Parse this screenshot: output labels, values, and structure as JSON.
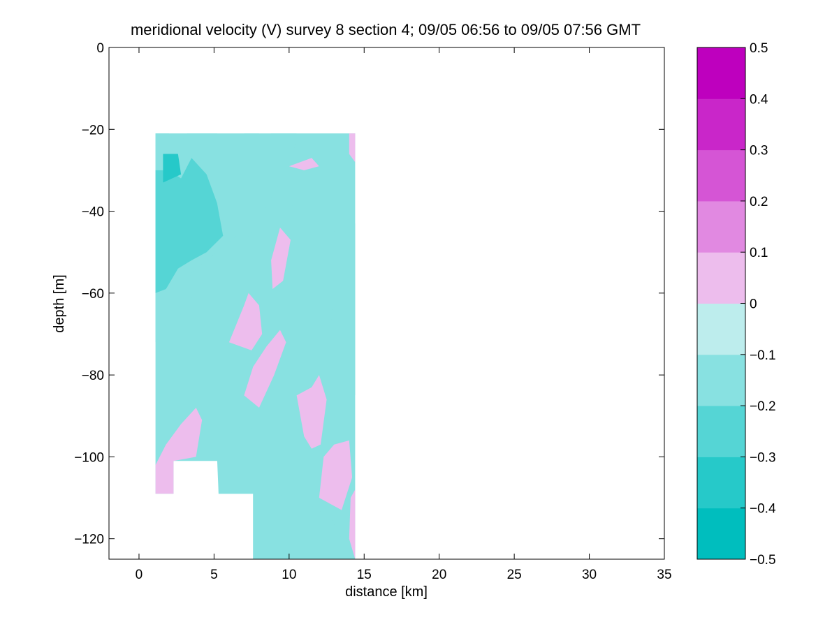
{
  "chart_data": {
    "type": "heatmap",
    "title": "meridional velocity (V) survey 8 section 4; 09/05 06:56 to 09/05 07:56 GMT",
    "xlabel": "distance [km]",
    "ylabel": "depth [m]",
    "xlim": [
      -2,
      35
    ],
    "ylim": [
      -125,
      0
    ],
    "x_ticks": [
      0,
      5,
      10,
      15,
      20,
      25,
      30,
      35
    ],
    "x_tick_labels": [
      "0",
      "5",
      "10",
      "15",
      "20",
      "25",
      "30",
      "35"
    ],
    "y_ticks": [
      0,
      -20,
      -40,
      -60,
      -80,
      -100,
      -120
    ],
    "y_tick_labels": [
      "0",
      "−20",
      "−40",
      "−60",
      "−80",
      "−100",
      "−120"
    ],
    "data_extent": {
      "x": [
        1.1,
        14.4
      ],
      "depth": [
        -21,
        -125
      ]
    },
    "colorbar": {
      "levels": [
        -0.5,
        -0.4,
        -0.3,
        -0.2,
        -0.1,
        0,
        0.1,
        0.2,
        0.3,
        0.4,
        0.5
      ],
      "tick_labels": [
        "−0.5",
        "−0.4",
        "−0.3",
        "−0.2",
        "−0.1",
        "0",
        "0.1",
        "0.2",
        "0.3",
        "0.4",
        "0.5"
      ],
      "colors": [
        "#00bebe",
        "#26c9c9",
        "#55d5d5",
        "#88e1e1",
        "#bdeded",
        "#edbded",
        "#e189e1",
        "#d555d5",
        "#c926c9",
        "#be00be"
      ]
    },
    "regions": [
      {
        "level": -0.1,
        "note": "background across the section (0 to -0.1 m/s)"
      },
      {
        "level": -0.15,
        "note": "western upper band, 1-8 km, -21 to -90 m"
      },
      {
        "level": -0.25,
        "note": "western core near 2-6 km, -25 to -65 m"
      },
      {
        "level": -0.35,
        "note": "small patch near 2 km, -27 to -33 m"
      },
      {
        "level": 0.05,
        "note": "positive patches around 6-14 km at mid-depth and near 1-5 km at -90 to -109 m"
      },
      {
        "level": -0.15,
        "note": "lower patch 5-14 km at -95 to -125 m"
      }
    ]
  }
}
